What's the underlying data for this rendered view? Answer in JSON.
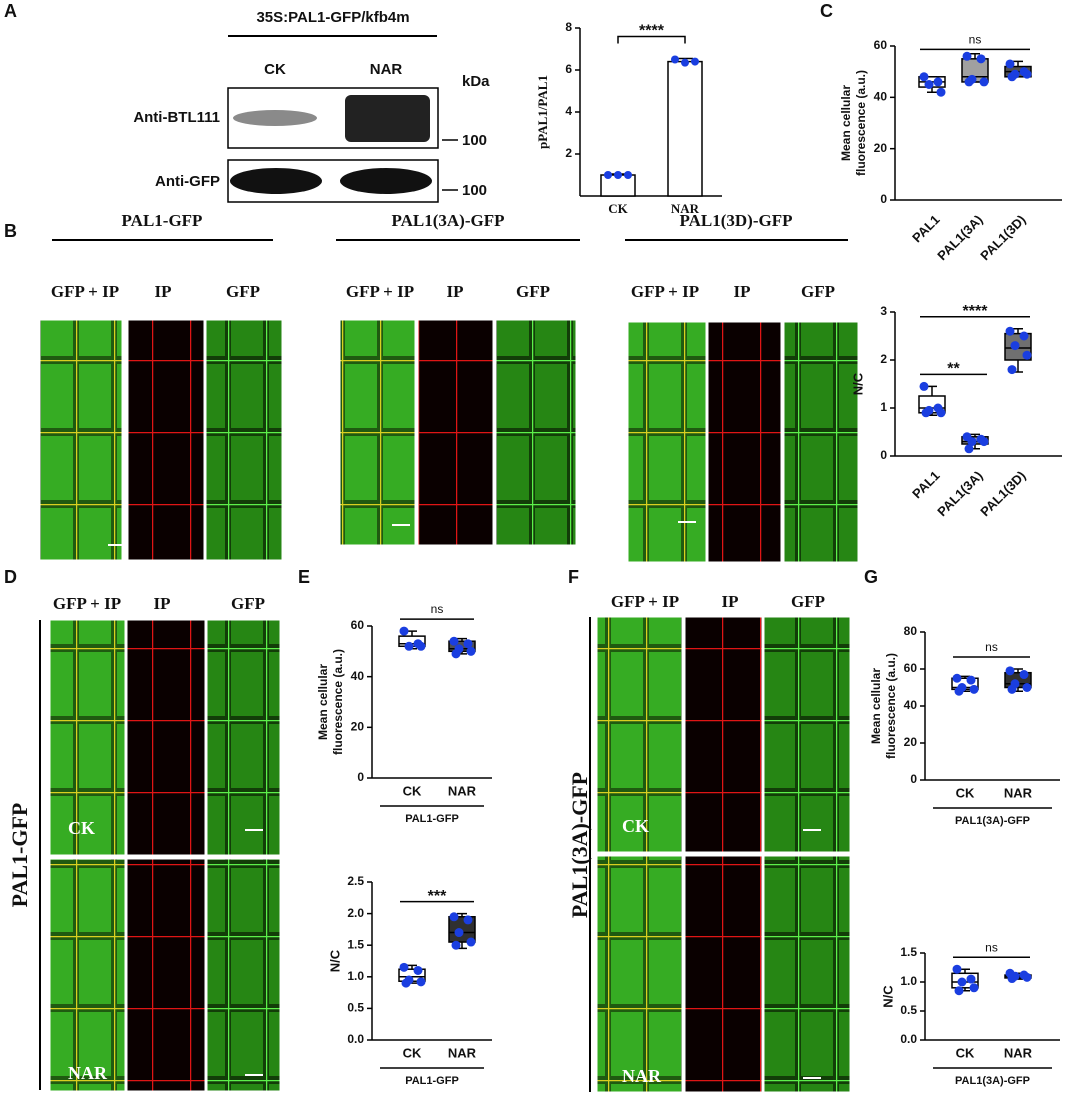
{
  "panels": {
    "a": "A",
    "b": "B",
    "c": "C",
    "d": "D",
    "e": "E",
    "f": "F",
    "g": "G"
  },
  "blot": {
    "title": "35S:PAL1-GFP/kfb4m",
    "lanes": [
      "CK",
      "NAR"
    ],
    "unit": "kDa",
    "rows": [
      "Anti-BTL111",
      "Anti-GFP"
    ],
    "markers": [
      "100",
      "100"
    ]
  },
  "panel_b": {
    "constructs": [
      "PAL1-GFP",
      "PAL1(3A)-GFP",
      "PAL1(3D)-GFP"
    ],
    "channels": [
      "GFP + IP",
      "IP",
      "GFP"
    ]
  },
  "panel_d": {
    "channels": [
      "GFP + IP",
      "IP",
      "GFP"
    ],
    "construct": "PAL1-GFP",
    "conditions": [
      "CK",
      "NAR"
    ]
  },
  "panel_f": {
    "channels": [
      "GFP + IP",
      "IP",
      "GFP"
    ],
    "construct": "PAL1(3A)-GFP",
    "conditions": [
      "CK",
      "NAR"
    ]
  },
  "chart_data": [
    {
      "type": "bar",
      "ylabel": "pPAL1/PAL1",
      "categories": [
        "CK",
        "NAR"
      ],
      "values": [
        1.0,
        6.4
      ],
      "errors": [
        0.05,
        0.15
      ],
      "points": [
        [
          1.0,
          1.0,
          1.0
        ],
        [
          6.5,
          6.35,
          6.4
        ]
      ],
      "color": "#ffffff",
      "edge_color": "#000000",
      "point_color": "#1a3ee0",
      "ylim": [
        0,
        8
      ],
      "yticks": [
        2,
        4,
        6,
        8
      ],
      "comparisons": [
        {
          "groups": [
            "CK",
            "NAR"
          ],
          "label": "****"
        }
      ]
    },
    {
      "type": "box",
      "ylabel": [
        "Mean cellular",
        "fluorescence (a.u.)"
      ],
      "categories": [
        "PAL1",
        "PAL1(3A)",
        "PAL1(3D)"
      ],
      "boxes": [
        {
          "min": 42,
          "q1": 44,
          "median": 46,
          "q3": 48,
          "max": 48,
          "points": [
            48,
            46,
            45,
            42
          ]
        },
        {
          "min": 46,
          "q1": 46,
          "median": 48,
          "q3": 55,
          "max": 57,
          "points": [
            56,
            55,
            47,
            46,
            46
          ]
        },
        {
          "min": 48,
          "q1": 48,
          "median": 50,
          "q3": 52,
          "max": 54,
          "points": [
            53,
            50,
            49,
            49,
            48
          ]
        }
      ],
      "box_colors": [
        "#ffffff",
        "#a0a0a0",
        "#505050"
      ],
      "point_color": "#1a3ee0",
      "ylim": [
        0,
        60
      ],
      "yticks": [
        0,
        20,
        40,
        60
      ],
      "comparisons": [
        {
          "groups": [
            "PAL1",
            "PAL1(3D)"
          ],
          "label": "ns"
        }
      ]
    },
    {
      "type": "box",
      "ylabel": "N/C",
      "categories": [
        "PAL1",
        "PAL1(3A)",
        "PAL1(3D)"
      ],
      "boxes": [
        {
          "min": 0.85,
          "q1": 0.9,
          "median": 1.0,
          "q3": 1.25,
          "max": 1.45,
          "points": [
            1.45,
            1.0,
            0.95,
            0.9,
            0.9
          ]
        },
        {
          "min": 0.15,
          "q1": 0.25,
          "median": 0.3,
          "q3": 0.4,
          "max": 0.45,
          "points": [
            0.4,
            0.35,
            0.3,
            0.3,
            0.15
          ]
        },
        {
          "min": 1.75,
          "q1": 2.0,
          "median": 2.25,
          "q3": 2.55,
          "max": 2.65,
          "points": [
            2.6,
            2.5,
            2.3,
            2.1,
            1.8
          ]
        }
      ],
      "box_colors": [
        "#ffffff",
        "#a0a0a0",
        "#707070"
      ],
      "point_color": "#1a3ee0",
      "ylim": [
        0,
        3
      ],
      "yticks": [
        0,
        1,
        2,
        3
      ],
      "comparisons": [
        {
          "groups": [
            "PAL1",
            "PAL1(3A)"
          ],
          "label": "**"
        },
        {
          "groups": [
            "PAL1",
            "PAL1(3D)"
          ],
          "label": "****"
        }
      ]
    },
    {
      "type": "box",
      "ylabel": [
        "Mean cellular",
        "fluorescence (a.u.)"
      ],
      "categories": [
        "CK",
        "NAR"
      ],
      "boxes": [
        {
          "min": 51,
          "q1": 52,
          "median": 53,
          "q3": 56,
          "max": 58,
          "points": [
            58,
            53,
            52,
            52
          ]
        },
        {
          "min": 49,
          "q1": 50,
          "median": 51,
          "q3": 54,
          "max": 55,
          "points": [
            54,
            53,
            51,
            50,
            49
          ]
        }
      ],
      "box_colors": [
        "#ffffff",
        "#505050"
      ],
      "point_color": "#1a3ee0",
      "ylim": [
        0,
        60
      ],
      "yticks": [
        0,
        20,
        40,
        60
      ],
      "comparisons": [
        {
          "groups": [
            "CK",
            "NAR"
          ],
          "label": "ns"
        }
      ],
      "group_label": "PAL1-GFP"
    },
    {
      "type": "box",
      "ylabel": "N/C",
      "categories": [
        "CK",
        "NAR"
      ],
      "boxes": [
        {
          "min": 0.9,
          "q1": 0.93,
          "median": 1.0,
          "q3": 1.12,
          "max": 1.18,
          "points": [
            1.15,
            1.1,
            0.95,
            0.92,
            0.9
          ]
        },
        {
          "min": 1.45,
          "q1": 1.55,
          "median": 1.7,
          "q3": 1.95,
          "max": 2.0,
          "points": [
            1.95,
            1.9,
            1.7,
            1.55,
            1.5
          ]
        }
      ],
      "box_colors": [
        "#ffffff",
        "#303030"
      ],
      "point_color": "#1a3ee0",
      "ylim": [
        0,
        2.5
      ],
      "yticks": [
        {
          "value": 0,
          "label": "0.0"
        },
        0.5,
        {
          "value": 1,
          "label": "1.0"
        },
        1.5,
        {
          "value": 2,
          "label": "2.0"
        },
        2.5
      ],
      "comparisons": [
        {
          "groups": [
            "CK",
            "NAR"
          ],
          "label": "***"
        }
      ],
      "group_label": "PAL1-GFP"
    },
    {
      "type": "box",
      "ylabel": [
        "Mean cellular",
        "fluorescence (a.u.)"
      ],
      "categories": [
        "CK",
        "NAR"
      ],
      "boxes": [
        {
          "min": 48,
          "q1": 49,
          "median": 50,
          "q3": 55,
          "max": 56,
          "points": [
            55,
            54,
            50,
            49,
            48
          ]
        },
        {
          "min": 48,
          "q1": 50,
          "median": 52,
          "q3": 58,
          "max": 60,
          "points": [
            59,
            57,
            52,
            50,
            49
          ]
        }
      ],
      "box_colors": [
        "#ffffff",
        "#303030"
      ],
      "point_color": "#1a3ee0",
      "ylim": [
        0,
        80
      ],
      "yticks": [
        0,
        20,
        40,
        60,
        80
      ],
      "comparisons": [
        {
          "groups": [
            "CK",
            "NAR"
          ],
          "label": "ns"
        }
      ],
      "group_label": "PAL1(3A)-GFP"
    },
    {
      "type": "box",
      "ylabel": "N/C",
      "categories": [
        "CK",
        "NAR"
      ],
      "boxes": [
        {
          "min": 0.85,
          "q1": 0.9,
          "median": 1.0,
          "q3": 1.15,
          "max": 1.22,
          "points": [
            1.22,
            1.05,
            1.0,
            0.9,
            0.85
          ]
        },
        {
          "min": 1.05,
          "q1": 1.07,
          "median": 1.1,
          "q3": 1.12,
          "max": 1.15,
          "points": [
            1.15,
            1.12,
            1.1,
            1.08,
            1.06
          ]
        }
      ],
      "box_colors": [
        "#ffffff",
        "#404040"
      ],
      "point_color": "#1a3ee0",
      "ylim": [
        0,
        1.5
      ],
      "yticks": [
        {
          "value": 0,
          "label": "0.0"
        },
        0.5,
        {
          "value": 1,
          "label": "1.0"
        },
        1.5
      ],
      "comparisons": [
        {
          "groups": [
            "CK",
            "NAR"
          ],
          "label": "ns"
        }
      ],
      "group_label": "PAL1(3A)-GFP"
    }
  ]
}
